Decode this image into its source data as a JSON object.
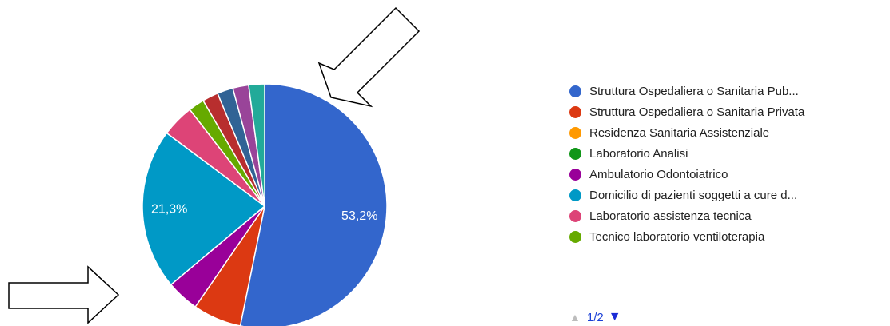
{
  "chart_data": {
    "type": "pie",
    "title": "",
    "start_angle_deg": 90,
    "direction": "clockwise",
    "legend_position": "right",
    "slices": [
      {
        "label": "Struttura Ospedaliera o Sanitaria Pub...",
        "value": 53.2,
        "color": "#3366cc",
        "data_label": "53,2%"
      },
      {
        "label": "Struttura Ospedaliera o Sanitaria Privata",
        "value": 6.4,
        "color": "#dc3912",
        "data_label": ""
      },
      {
        "label": "Residenza Sanitaria Assistenziale",
        "value": 0,
        "color": "#ff9900",
        "data_label": ""
      },
      {
        "label": "Laboratorio Analisi",
        "value": 0,
        "color": "#109618",
        "data_label": ""
      },
      {
        "label": "Ambulatorio Odontoiatrico",
        "value": 4.3,
        "color": "#990099",
        "data_label": ""
      },
      {
        "label": "Domicilio di pazienti soggetti a cure d...",
        "value": 21.3,
        "color": "#0099c6",
        "data_label": "21,3%"
      },
      {
        "label": "Laboratorio assistenza tecnica",
        "value": 4.3,
        "color": "#dd4477",
        "data_label": ""
      },
      {
        "label": "Tecnico laboratorio ventiloterapia",
        "value": 2.1,
        "color": "#66aa00",
        "data_label": ""
      },
      {
        "label": "",
        "value": 2.1,
        "color": "#b82e2e",
        "data_label": ""
      },
      {
        "label": "",
        "value": 2.1,
        "color": "#316395",
        "data_label": ""
      },
      {
        "label": "",
        "value": 2.1,
        "color": "#994499",
        "data_label": ""
      },
      {
        "label": "",
        "value": 2.1,
        "color": "#22aa99",
        "data_label": ""
      }
    ]
  },
  "legend_items": [
    {
      "label": "Struttura Ospedaliera o Sanitaria Pub...",
      "color": "#3366cc"
    },
    {
      "label": "Struttura Ospedaliera o Sanitaria Privata",
      "color": "#dc3912"
    },
    {
      "label": "Residenza Sanitaria Assistenziale",
      "color": "#ff9900"
    },
    {
      "label": "Laboratorio Analisi",
      "color": "#109618"
    },
    {
      "label": "Ambulatorio Odontoiatrico",
      "color": "#990099"
    },
    {
      "label": "Domicilio di pazienti soggetti a cure d...",
      "color": "#0099c6"
    },
    {
      "label": "Laboratorio assistenza tecnica",
      "color": "#dd4477"
    },
    {
      "label": "Tecnico laboratorio ventiloterapia",
      "color": "#66aa00"
    }
  ],
  "pager": {
    "label": "1/2",
    "up_icon": "triangle-up-icon",
    "down_icon": "triangle-down-icon"
  },
  "annotations": [
    {
      "name": "annotation-arrow-top",
      "icon": "arrow-outline-icon"
    },
    {
      "name": "annotation-arrow-bottom",
      "icon": "arrow-outline-icon"
    }
  ]
}
